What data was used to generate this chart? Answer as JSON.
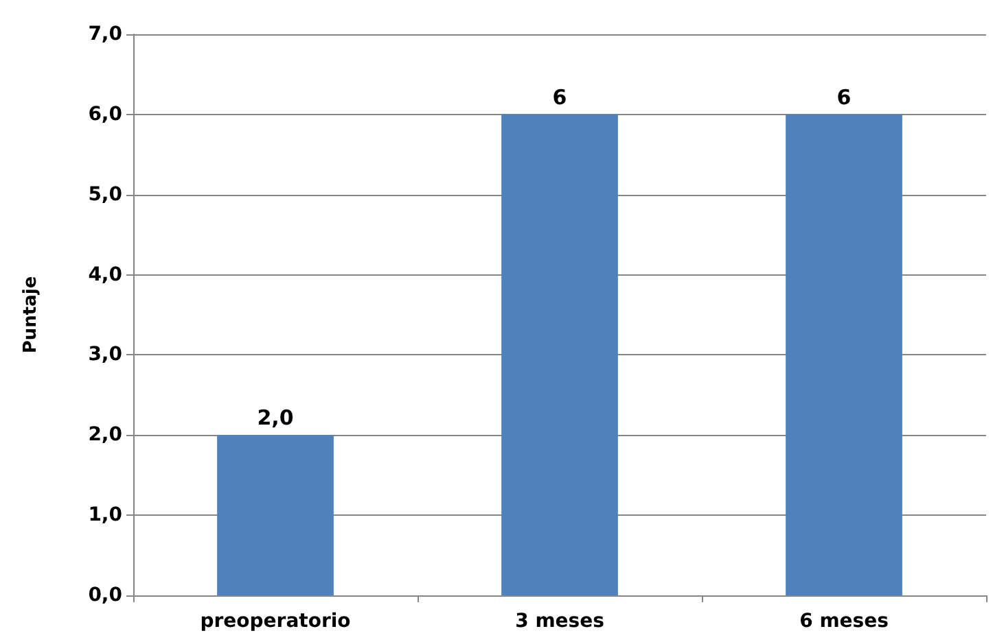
{
  "chart_data": {
    "type": "bar",
    "ylabel": "Puntaje",
    "categories": [
      "preoperatorio",
      "3 meses",
      "6 meses"
    ],
    "values": [
      2.0,
      6,
      6
    ],
    "color": "#4f81bd",
    "value_labels": [
      "2,0",
      "6",
      "6"
    ],
    "ylim": [
      0,
      7
    ],
    "yticks": [
      {
        "value": 0,
        "label": "0,0"
      },
      {
        "value": 1,
        "label": "1,0"
      },
      {
        "value": 2,
        "label": "2,0"
      },
      {
        "value": 3,
        "label": "3,0"
      },
      {
        "value": 4,
        "label": "4,0"
      },
      {
        "value": 5,
        "label": "5,0"
      },
      {
        "value": 6,
        "label": "6,0"
      },
      {
        "value": 7,
        "label": "7,0"
      }
    ],
    "grid": "y"
  }
}
